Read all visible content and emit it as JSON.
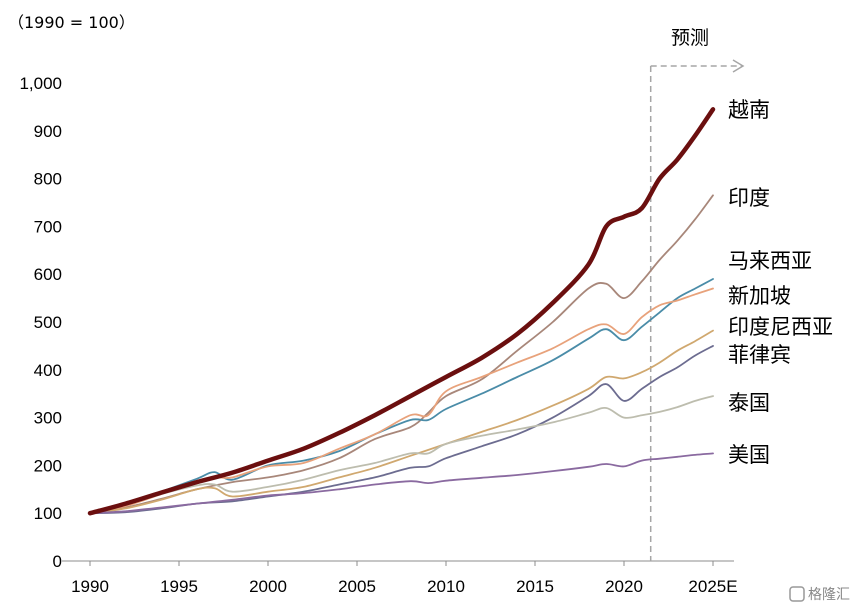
{
  "chart_data": {
    "type": "line",
    "title": "",
    "subtitle": "",
    "index_note": "（1990 = 100）",
    "xlabel": "",
    "ylabel": "",
    "xlim": [
      1990,
      2025
    ],
    "ylim": [
      0,
      1000
    ],
    "x_ticks": [
      1990,
      1995,
      2000,
      2005,
      2010,
      2015,
      2020,
      2025
    ],
    "x_tick_labels": [
      "1990",
      "1995",
      "2000",
      "2005",
      "2010",
      "2015",
      "2020",
      "2025E"
    ],
    "y_ticks": [
      0,
      100,
      200,
      300,
      400,
      500,
      600,
      700,
      800,
      900,
      1000
    ],
    "y_tick_labels": [
      "0",
      "100",
      "200",
      "300",
      "400",
      "500",
      "600",
      "700",
      "800",
      "900",
      "1,000"
    ],
    "grid": false,
    "legend": "none; series labelled at right end of lines",
    "forecast": {
      "start_x": 2021.5,
      "label": "预测"
    },
    "series": [
      {
        "name": "越南",
        "color": "#6b0f0f",
        "emphasis": true,
        "points": [
          [
            1990,
            100
          ],
          [
            1992,
            120
          ],
          [
            1994,
            143
          ],
          [
            1996,
            165
          ],
          [
            1998,
            185
          ],
          [
            2000,
            210
          ],
          [
            2002,
            235
          ],
          [
            2004,
            268
          ],
          [
            2006,
            305
          ],
          [
            2008,
            345
          ],
          [
            2010,
            385
          ],
          [
            2012,
            425
          ],
          [
            2014,
            475
          ],
          [
            2016,
            540
          ],
          [
            2018,
            620
          ],
          [
            2019,
            700
          ],
          [
            2020,
            720
          ],
          [
            2021,
            738
          ],
          [
            2022,
            800
          ],
          [
            2023,
            840
          ],
          [
            2024,
            890
          ],
          [
            2025,
            945
          ]
        ]
      },
      {
        "name": "印度",
        "color": "#a8877a",
        "points": [
          [
            1990,
            100
          ],
          [
            1992,
            112
          ],
          [
            1994,
            130
          ],
          [
            1996,
            150
          ],
          [
            1998,
            165
          ],
          [
            2000,
            175
          ],
          [
            2002,
            190
          ],
          [
            2004,
            215
          ],
          [
            2006,
            255
          ],
          [
            2008,
            280
          ],
          [
            2009,
            310
          ],
          [
            2010,
            345
          ],
          [
            2012,
            380
          ],
          [
            2014,
            440
          ],
          [
            2016,
            500
          ],
          [
            2018,
            570
          ],
          [
            2019,
            580
          ],
          [
            2020,
            550
          ],
          [
            2021,
            585
          ],
          [
            2022,
            630
          ],
          [
            2023,
            670
          ],
          [
            2024,
            715
          ],
          [
            2025,
            765
          ]
        ]
      },
      {
        "name": "马来西亚",
        "color": "#4a8ca8",
        "points": [
          [
            1990,
            100
          ],
          [
            1992,
            120
          ],
          [
            1994,
            145
          ],
          [
            1996,
            172
          ],
          [
            1997,
            186
          ],
          [
            1998,
            170
          ],
          [
            2000,
            200
          ],
          [
            2002,
            210
          ],
          [
            2004,
            230
          ],
          [
            2006,
            265
          ],
          [
            2008,
            295
          ],
          [
            2009,
            295
          ],
          [
            2010,
            318
          ],
          [
            2012,
            350
          ],
          [
            2014,
            385
          ],
          [
            2016,
            420
          ],
          [
            2018,
            465
          ],
          [
            2019,
            485
          ],
          [
            2020,
            462
          ],
          [
            2021,
            490
          ],
          [
            2022,
            520
          ],
          [
            2023,
            550
          ],
          [
            2024,
            570
          ],
          [
            2025,
            590
          ]
        ]
      },
      {
        "name": "新加坡",
        "color": "#e8a27b",
        "points": [
          [
            1990,
            100
          ],
          [
            1992,
            115
          ],
          [
            1994,
            140
          ],
          [
            1996,
            165
          ],
          [
            1997,
            175
          ],
          [
            1998,
            175
          ],
          [
            2000,
            198
          ],
          [
            2002,
            205
          ],
          [
            2004,
            235
          ],
          [
            2006,
            265
          ],
          [
            2008,
            305
          ],
          [
            2009,
            305
          ],
          [
            2010,
            355
          ],
          [
            2012,
            385
          ],
          [
            2014,
            415
          ],
          [
            2016,
            445
          ],
          [
            2018,
            485
          ],
          [
            2019,
            495
          ],
          [
            2020,
            475
          ],
          [
            2021,
            510
          ],
          [
            2022,
            535
          ],
          [
            2023,
            545
          ],
          [
            2024,
            558
          ],
          [
            2025,
            570
          ]
        ]
      },
      {
        "name": "印度尼西亚",
        "color": "#d0a86f",
        "points": [
          [
            1990,
            100
          ],
          [
            1992,
            110
          ],
          [
            1994,
            128
          ],
          [
            1996,
            150
          ],
          [
            1997,
            152
          ],
          [
            1998,
            135
          ],
          [
            2000,
            145
          ],
          [
            2002,
            155
          ],
          [
            2004,
            175
          ],
          [
            2006,
            195
          ],
          [
            2008,
            220
          ],
          [
            2010,
            245
          ],
          [
            2012,
            270
          ],
          [
            2014,
            295
          ],
          [
            2016,
            325
          ],
          [
            2018,
            360
          ],
          [
            2019,
            385
          ],
          [
            2020,
            382
          ],
          [
            2021,
            395
          ],
          [
            2022,
            415
          ],
          [
            2023,
            440
          ],
          [
            2024,
            460
          ],
          [
            2025,
            482
          ]
        ]
      },
      {
        "name": "菲律宾",
        "color": "#6c6c90",
        "points": [
          [
            1990,
            100
          ],
          [
            1992,
            102
          ],
          [
            1994,
            110
          ],
          [
            1996,
            120
          ],
          [
            1998,
            125
          ],
          [
            2000,
            135
          ],
          [
            2002,
            145
          ],
          [
            2004,
            160
          ],
          [
            2006,
            175
          ],
          [
            2008,
            195
          ],
          [
            2009,
            198
          ],
          [
            2010,
            215
          ],
          [
            2012,
            240
          ],
          [
            2014,
            265
          ],
          [
            2016,
            300
          ],
          [
            2018,
            345
          ],
          [
            2019,
            370
          ],
          [
            2020,
            335
          ],
          [
            2021,
            360
          ],
          [
            2022,
            385
          ],
          [
            2023,
            405
          ],
          [
            2024,
            430
          ],
          [
            2025,
            450
          ]
        ]
      },
      {
        "name": "泰国",
        "color": "#bdbdae",
        "points": [
          [
            1990,
            100
          ],
          [
            1992,
            118
          ],
          [
            1994,
            140
          ],
          [
            1996,
            158
          ],
          [
            1997,
            160
          ],
          [
            1998,
            145
          ],
          [
            2000,
            155
          ],
          [
            2002,
            170
          ],
          [
            2004,
            190
          ],
          [
            2006,
            205
          ],
          [
            2008,
            225
          ],
          [
            2009,
            225
          ],
          [
            2010,
            245
          ],
          [
            2012,
            262
          ],
          [
            2014,
            275
          ],
          [
            2016,
            290
          ],
          [
            2018,
            310
          ],
          [
            2019,
            320
          ],
          [
            2020,
            300
          ],
          [
            2021,
            305
          ],
          [
            2022,
            312
          ],
          [
            2023,
            322
          ],
          [
            2024,
            335
          ],
          [
            2025,
            345
          ]
        ]
      },
      {
        "name": "美国",
        "color": "#8a6aa0",
        "points": [
          [
            1990,
            100
          ],
          [
            1992,
            104
          ],
          [
            1994,
            112
          ],
          [
            1996,
            120
          ],
          [
            1998,
            128
          ],
          [
            2000,
            137
          ],
          [
            2002,
            142
          ],
          [
            2004,
            150
          ],
          [
            2006,
            160
          ],
          [
            2008,
            167
          ],
          [
            2009,
            163
          ],
          [
            2010,
            168
          ],
          [
            2012,
            174
          ],
          [
            2014,
            180
          ],
          [
            2016,
            188
          ],
          [
            2018,
            197
          ],
          [
            2019,
            203
          ],
          [
            2020,
            198
          ],
          [
            2021,
            210
          ],
          [
            2022,
            214
          ],
          [
            2023,
            218
          ],
          [
            2024,
            222
          ],
          [
            2025,
            225
          ]
        ]
      }
    ]
  },
  "watermark": "格隆汇"
}
